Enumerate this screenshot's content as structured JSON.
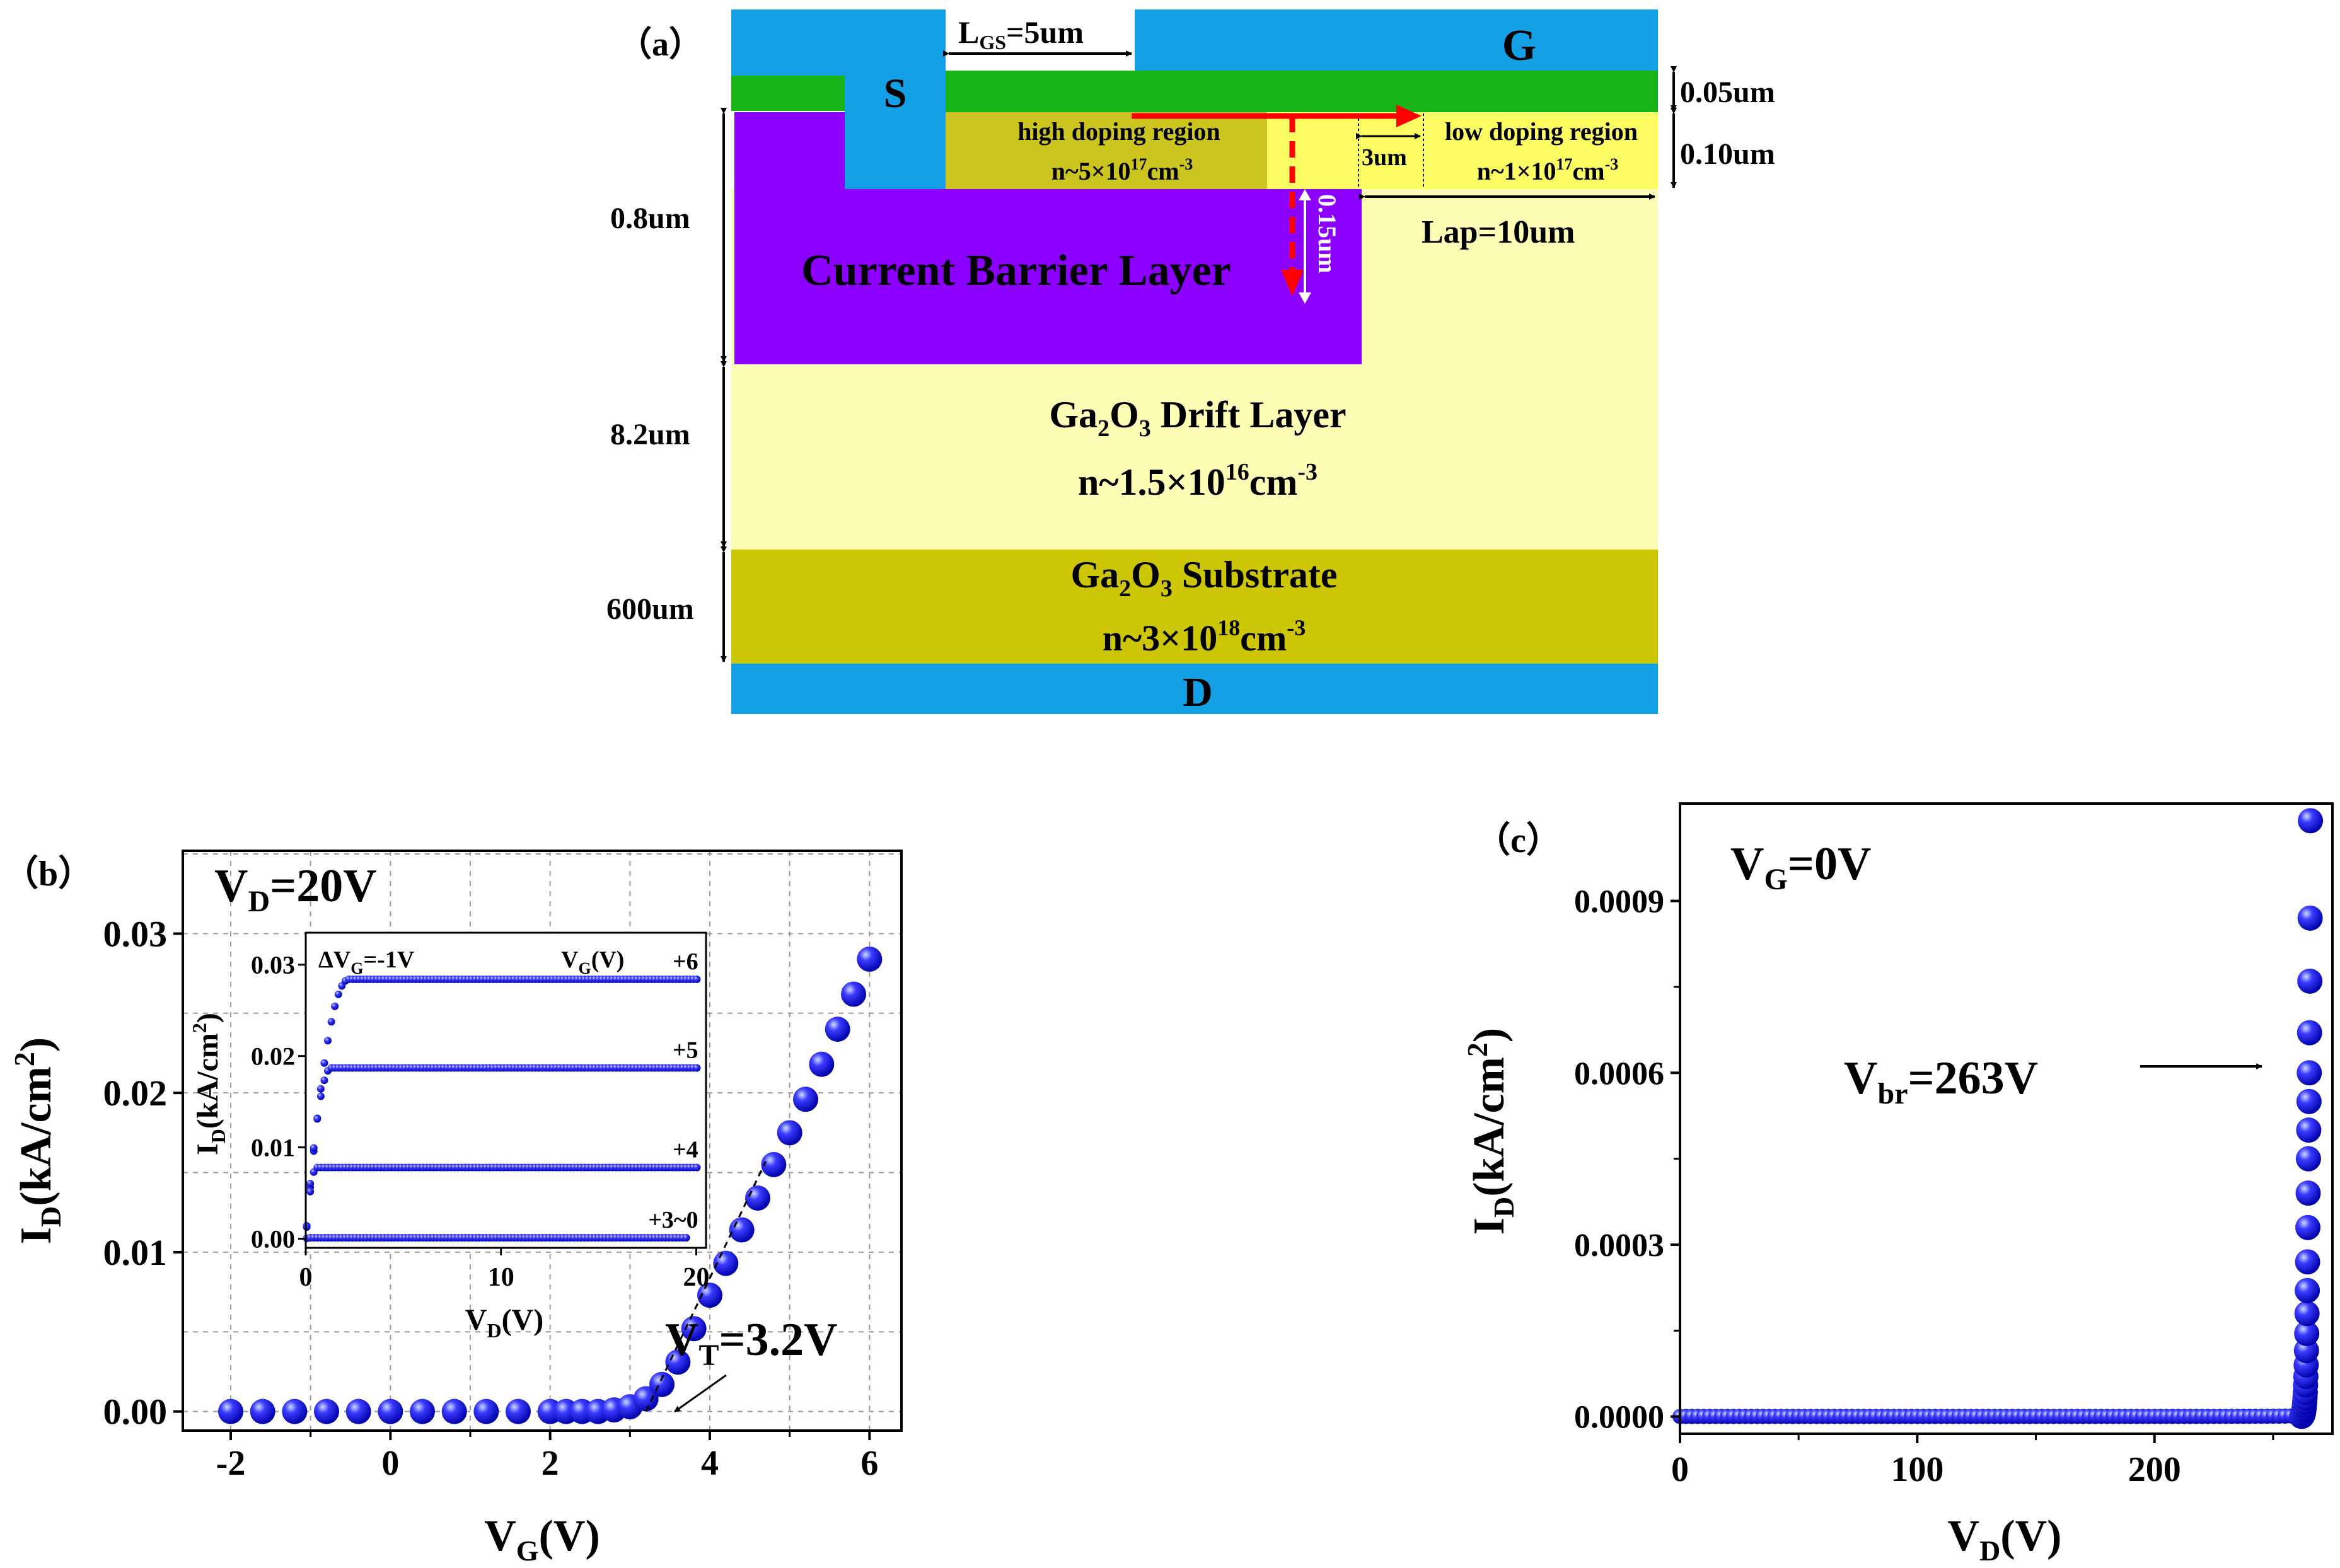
{
  "device": {
    "panel_label": "（a）",
    "S": "S",
    "G": "G",
    "D": "D",
    "lgs": {
      "main": "L",
      "sub": "GS",
      "rest": "=5um"
    },
    "dim_005": "0.05um",
    "dim_010": "0.10um",
    "dim_08": "0.8um",
    "dim_82": "8.2um",
    "dim_600": "600um",
    "dim_3um": "3um",
    "dim_015": "0.15um",
    "lap": "Lap=10um",
    "high_doping": {
      "title": "high doping region",
      "base": "n~5×10",
      "exp": "17",
      "unit": "cm",
      "unit_exp": "-3"
    },
    "low_doping": {
      "title": "low doping region",
      "base": "n~1×10",
      "exp": "17",
      "unit": "cm",
      "unit_exp": "-3"
    },
    "cbl": "Current Barrier Layer",
    "drift": {
      "pre": "Ga",
      "s1": "2",
      "mid": "O",
      "s2": "3",
      "rest": " Drift Layer",
      "base": "n~1.5×10",
      "exp": "16",
      "unit": "cm",
      "unit_exp": "-3"
    },
    "substrate": {
      "pre": "Ga",
      "s1": "2",
      "mid": "O",
      "s2": "3",
      "rest": " Substrate",
      "base": "n~3×10",
      "exp": "18",
      "unit": "cm",
      "unit_exp": "-3"
    },
    "colors": {
      "metal": "#14a0e6",
      "green": "#17b317",
      "high": "#cdc51f",
      "low": "#fcfc63",
      "drift": "#fefdb6",
      "substrate": "#cdc604",
      "cbl": "#8b00ff",
      "arrow": "#ff0000"
    }
  },
  "chart_data": [
    {
      "type": "scatter",
      "panel_label": "（b）",
      "annotation_vd": {
        "main": "V",
        "sub": "D",
        "rest": "=20V"
      },
      "annotation_vt": {
        "main": "V",
        "sub": "T",
        "rest": "=3.2V"
      },
      "xlabel": {
        "main": "V",
        "sub": "G",
        "rest": "(V)"
      },
      "ylabel": {
        "main": "I",
        "sub": "D",
        "rest": "(kA/cm",
        "sup": "2",
        "end": ")"
      },
      "xlim": [
        -2.6,
        6.4
      ],
      "ylim": [
        -0.0012,
        0.0352
      ],
      "xticks": [
        "-2",
        "0",
        "2",
        "4",
        "6"
      ],
      "yticks": [
        "0.00",
        "0.01",
        "0.02",
        "0.03"
      ],
      "grid": true,
      "marker_color": "#1010ee",
      "x": [
        -2.0,
        -1.6,
        -1.2,
        -0.8,
        -0.4,
        0.0,
        0.4,
        0.8,
        1.2,
        1.6,
        2.0,
        2.2,
        2.4,
        2.6,
        2.8,
        3.0,
        3.2,
        3.4,
        3.6,
        3.8,
        4.0,
        4.2,
        4.4,
        4.6,
        4.8,
        5.0,
        5.2,
        5.4,
        5.6,
        5.8,
        6.0
      ],
      "y": [
        0,
        0,
        0,
        0,
        0,
        0,
        0,
        0,
        0,
        0,
        0,
        0,
        0,
        0,
        0.0001,
        0.0003,
        0.0008,
        0.0017,
        0.0031,
        0.0052,
        0.0073,
        0.0093,
        0.0114,
        0.0134,
        0.0155,
        0.0175,
        0.0196,
        0.0218,
        0.024,
        0.0262,
        0.0284
      ],
      "inset": {
        "type": "line",
        "annotation_dvg": {
          "main": "ΔV",
          "sub": "G",
          "rest": "=-1V"
        },
        "annotation_vg": {
          "main": "V",
          "sub": "G",
          "rest": "(V)"
        },
        "xlabel": {
          "main": "V",
          "sub": "D",
          "rest": "(V)"
        },
        "ylabel": {
          "main": "I",
          "sub": "D",
          "rest": "(kA/cm",
          "sup": "2",
          "end": ")"
        },
        "xlim": [
          0,
          20.5
        ],
        "ylim": [
          -0.001,
          0.0335
        ],
        "xticks": [
          "0",
          "10",
          "20"
        ],
        "yticks": [
          "0.00",
          "0.01",
          "0.02",
          "0.03"
        ],
        "series": [
          {
            "name": "+6",
            "plateau": 0.0284,
            "vsat": 2.2
          },
          {
            "name": "+5",
            "plateau": 0.0187,
            "vsat": 1.3
          },
          {
            "name": "+4",
            "plateau": 0.0078,
            "vsat": 0.55
          },
          {
            "name": "+3~0",
            "plateau": 0.0001,
            "vsat": 0.2
          }
        ]
      }
    },
    {
      "type": "scatter",
      "panel_label": "（c）",
      "annotation_vg": {
        "main": "V",
        "sub": "G",
        "rest": "=0V"
      },
      "annotation_vbr": {
        "main": "V",
        "sub": "br",
        "rest": "=263V"
      },
      "xlabel": {
        "main": "V",
        "sub": "D",
        "rest": "(V)"
      },
      "ylabel": {
        "main": "I",
        "sub": "D",
        "rest": "(kA/cm",
        "sup": "2",
        "end": ")"
      },
      "xlim": [
        0,
        275
      ],
      "ylim": [
        -3e-05,
        0.00107
      ],
      "xticks": [
        "0",
        "100",
        "200"
      ],
      "yticks": [
        "0.0000",
        "0.0003",
        "0.0006",
        "0.0009"
      ],
      "breakdown_voltage": 263,
      "marker_color": "#1010ee",
      "breakdown_y": [
        3e-07,
        6e-07,
        1e-06,
        1.6e-06,
        2.5e-06,
        3.8e-06,
        5.5e-06,
        7.8e-06,
        1.1e-05,
        1.5e-05,
        2e-05,
        2.6e-05,
        3.3e-05,
        4.2e-05,
        5.5e-05,
        7e-05,
        9e-05,
        0.000115,
        0.000145,
        0.00018,
        0.00022,
        0.00027,
        0.00033,
        0.00039,
        0.00045,
        0.0005,
        0.00055,
        0.0006,
        0.00067,
        0.00076,
        0.00087,
        0.00104
      ]
    }
  ]
}
